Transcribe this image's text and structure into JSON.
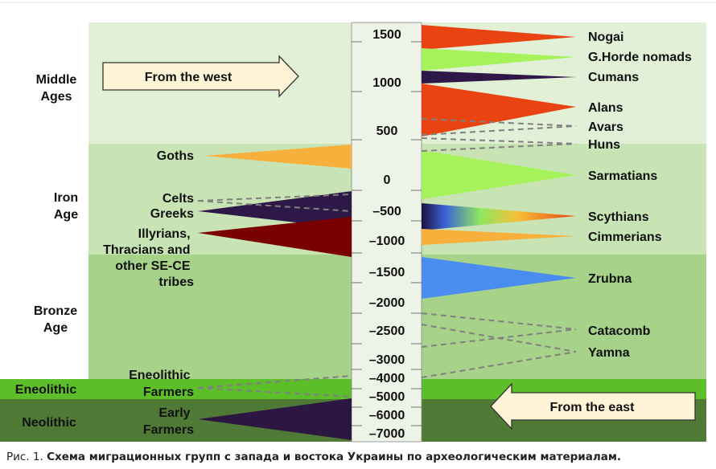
{
  "periods": [
    {
      "id": "middle-ages",
      "lines": [
        "Middle",
        "Ages"
      ]
    },
    {
      "id": "iron-age",
      "lines": [
        "Iron",
        "Age"
      ]
    },
    {
      "id": "bronze-age",
      "lines": [
        "Bronze",
        "Age"
      ]
    },
    {
      "id": "eneolithic",
      "lines": [
        "Eneolithic"
      ]
    },
    {
      "id": "neolithic",
      "lines": [
        "Neolithic"
      ]
    }
  ],
  "scale": [
    "1500",
    "1000",
    "500",
    "0",
    "–500",
    "–1000",
    "–1500",
    "–2000",
    "–2500",
    "–3000",
    "–4000",
    "–5000",
    "–6000",
    "–7000"
  ],
  "west_groups": [
    {
      "id": "goths",
      "lines": [
        "Goths"
      ],
      "color": "#f8b03c"
    },
    {
      "id": "celts",
      "lines": [
        "Celts"
      ],
      "color": "#808080"
    },
    {
      "id": "greeks",
      "lines": [
        "Greeks"
      ],
      "color": "#2e1848"
    },
    {
      "id": "illyrians",
      "lines": [
        "Illyrians,",
        "Thracians and",
        "other SE-CE",
        "tribes"
      ],
      "color": "#7a0000"
    },
    {
      "id": "eneolithic-farmers",
      "lines": [
        "Eneolithic",
        "Farmers"
      ],
      "color": "#808080"
    },
    {
      "id": "early-farmers",
      "lines": [
        "Early",
        "Farmers"
      ],
      "color": "#2c1742"
    }
  ],
  "east_groups": [
    {
      "id": "nogai",
      "label": "Nogai",
      "color": "#e84310"
    },
    {
      "id": "golden-horde",
      "label": "G.Horde nomads",
      "color": "#a6f25a"
    },
    {
      "id": "cumans",
      "label": "Cumans",
      "color": "#2e1848"
    },
    {
      "id": "alans",
      "label": "Alans",
      "color": "#e84310"
    },
    {
      "id": "avars",
      "label": "Avars",
      "color": "#808080"
    },
    {
      "id": "huns",
      "label": "Huns",
      "color": "#808080"
    },
    {
      "id": "sarmatians",
      "label": "Sarmatians",
      "color": "#a6f25a"
    },
    {
      "id": "scythians",
      "label": "Scythians",
      "color": "#e84310"
    },
    {
      "id": "cimmerians",
      "label": "Cimmerians",
      "color": "#f8b03c"
    },
    {
      "id": "zrubna",
      "label": "Zrubna",
      "color": "#4a8cf0"
    },
    {
      "id": "catacomb",
      "label": "Catacomb",
      "color": "#808080"
    },
    {
      "id": "yamna",
      "label": "Yamna",
      "color": "#808080"
    }
  ],
  "arrows": {
    "west": "From the west",
    "east": "From the east",
    "fill": "#fff5d6"
  },
  "band_colors": {
    "middle_ages": "#e3f0d8",
    "iron_age": "#c8e3b4",
    "bronze_age": "#a6d389",
    "eneolithic": "#5cbf2a",
    "neolithic": "#4f7a36",
    "scale": "#edf3e6"
  },
  "caption": {
    "fig": "Рис. 1.",
    "text": "Схема миграционных групп с запада и востока Украины по археологическим материалам."
  }
}
